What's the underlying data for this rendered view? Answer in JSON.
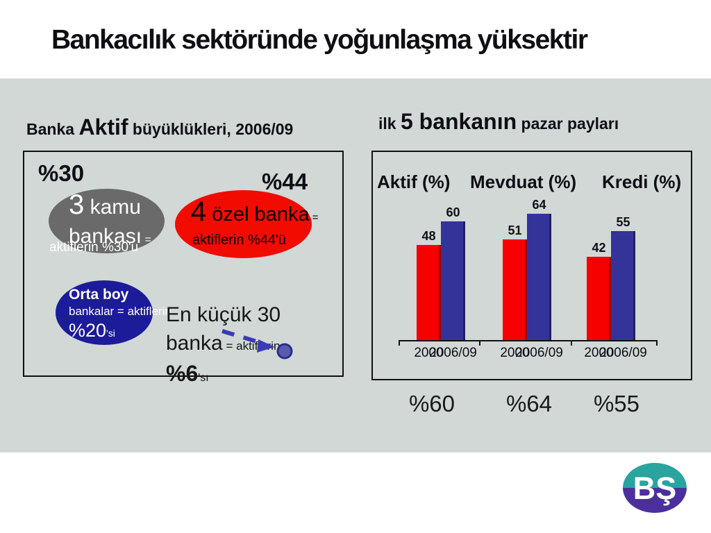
{
  "slide": {
    "title": "Bankacılık sektöründe yoğunlaşma yüksektir"
  },
  "left_panel": {
    "heading": {
      "pre": "Banka ",
      "emph": "Aktif",
      "post": " büyüklükleri, 2006/09"
    },
    "label_public_share": "%30",
    "label_private_share": "%44",
    "public_banks": {
      "color": "#6a6a6a",
      "count": "3",
      "label_rest": " kamu",
      "line2": "bankası",
      "eq": " =",
      "subtext": "aktiflerin %30'u"
    },
    "private_banks": {
      "color": "#f20b00",
      "count": "4",
      "label_rest": " özel banka",
      "eq": " =",
      "subtext": "aktiflerin %44'ü"
    },
    "medium_banks": {
      "color": "#1c1b99",
      "title": "Orta boy",
      "line2": "bankalar = aktiflerin",
      "pct": "%20",
      "pct_suffix": "'si"
    },
    "smallest_banks": {
      "line1": "En küçük 30",
      "line2_main": "banka",
      "line2_small": " = aktiflerin",
      "pct": "%6",
      "pct_suffix": "'sı"
    }
  },
  "right_panel": {
    "heading": {
      "pre": "ilk ",
      "emph": "5 bankanın",
      "post": " pazar payları"
    },
    "chart_data": {
      "type": "bar",
      "title": "ilk 5 bankanın pazar payları",
      "groups": [
        "Aktif (%)",
        "Mevduat (%)",
        "Kredi (%)"
      ],
      "categories": [
        "2000",
        "2006/09"
      ],
      "series": [
        {
          "name": "2000",
          "color": "#f60000",
          "values": [
            48,
            51,
            42
          ]
        },
        {
          "name": "2006/09",
          "color": "#333399",
          "values": [
            60,
            64,
            55
          ]
        }
      ],
      "ylim": [
        0,
        68
      ],
      "grid": false,
      "legend_position": "none",
      "value_labels": true
    },
    "totals": [
      "%60",
      "%64",
      "%55"
    ]
  },
  "logo": {
    "text": "BŞ",
    "teal": "#2aa49e",
    "purple": "#4c2f9e"
  }
}
